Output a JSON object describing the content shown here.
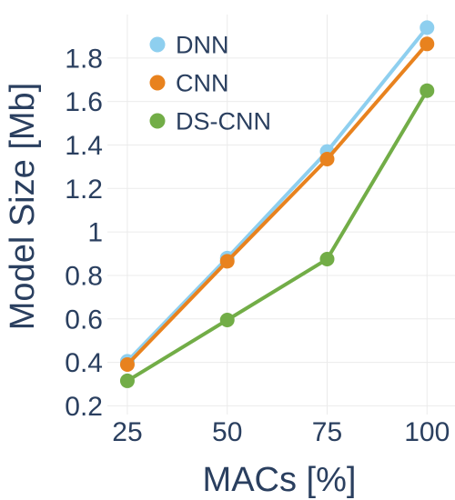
{
  "chart_data": {
    "type": "line",
    "x": [
      25,
      50,
      75,
      100
    ],
    "xlabel": "MACs [%]",
    "ylabel": "Model Size [Mb]",
    "xticks": [
      "25",
      "50",
      "75",
      "100"
    ],
    "yticks": [
      "0.2",
      "0.4",
      "0.6",
      "0.8",
      "1",
      "1.2",
      "1.4",
      "1.6",
      "1.8"
    ],
    "xlim": [
      20,
      107
    ],
    "ylim": [
      0.16,
      2.0
    ],
    "grid": true,
    "legend_position": "top-left",
    "series": [
      {
        "name": "DNN",
        "color": "#8ecfef",
        "values": [
          0.405,
          0.88,
          1.37,
          1.94
        ]
      },
      {
        "name": "CNN",
        "color": "#e8821e",
        "values": [
          0.39,
          0.865,
          1.335,
          1.865
        ]
      },
      {
        "name": "DS-CNN",
        "color": "#72ad47",
        "values": [
          0.315,
          0.595,
          0.875,
          1.65
        ]
      }
    ]
  }
}
